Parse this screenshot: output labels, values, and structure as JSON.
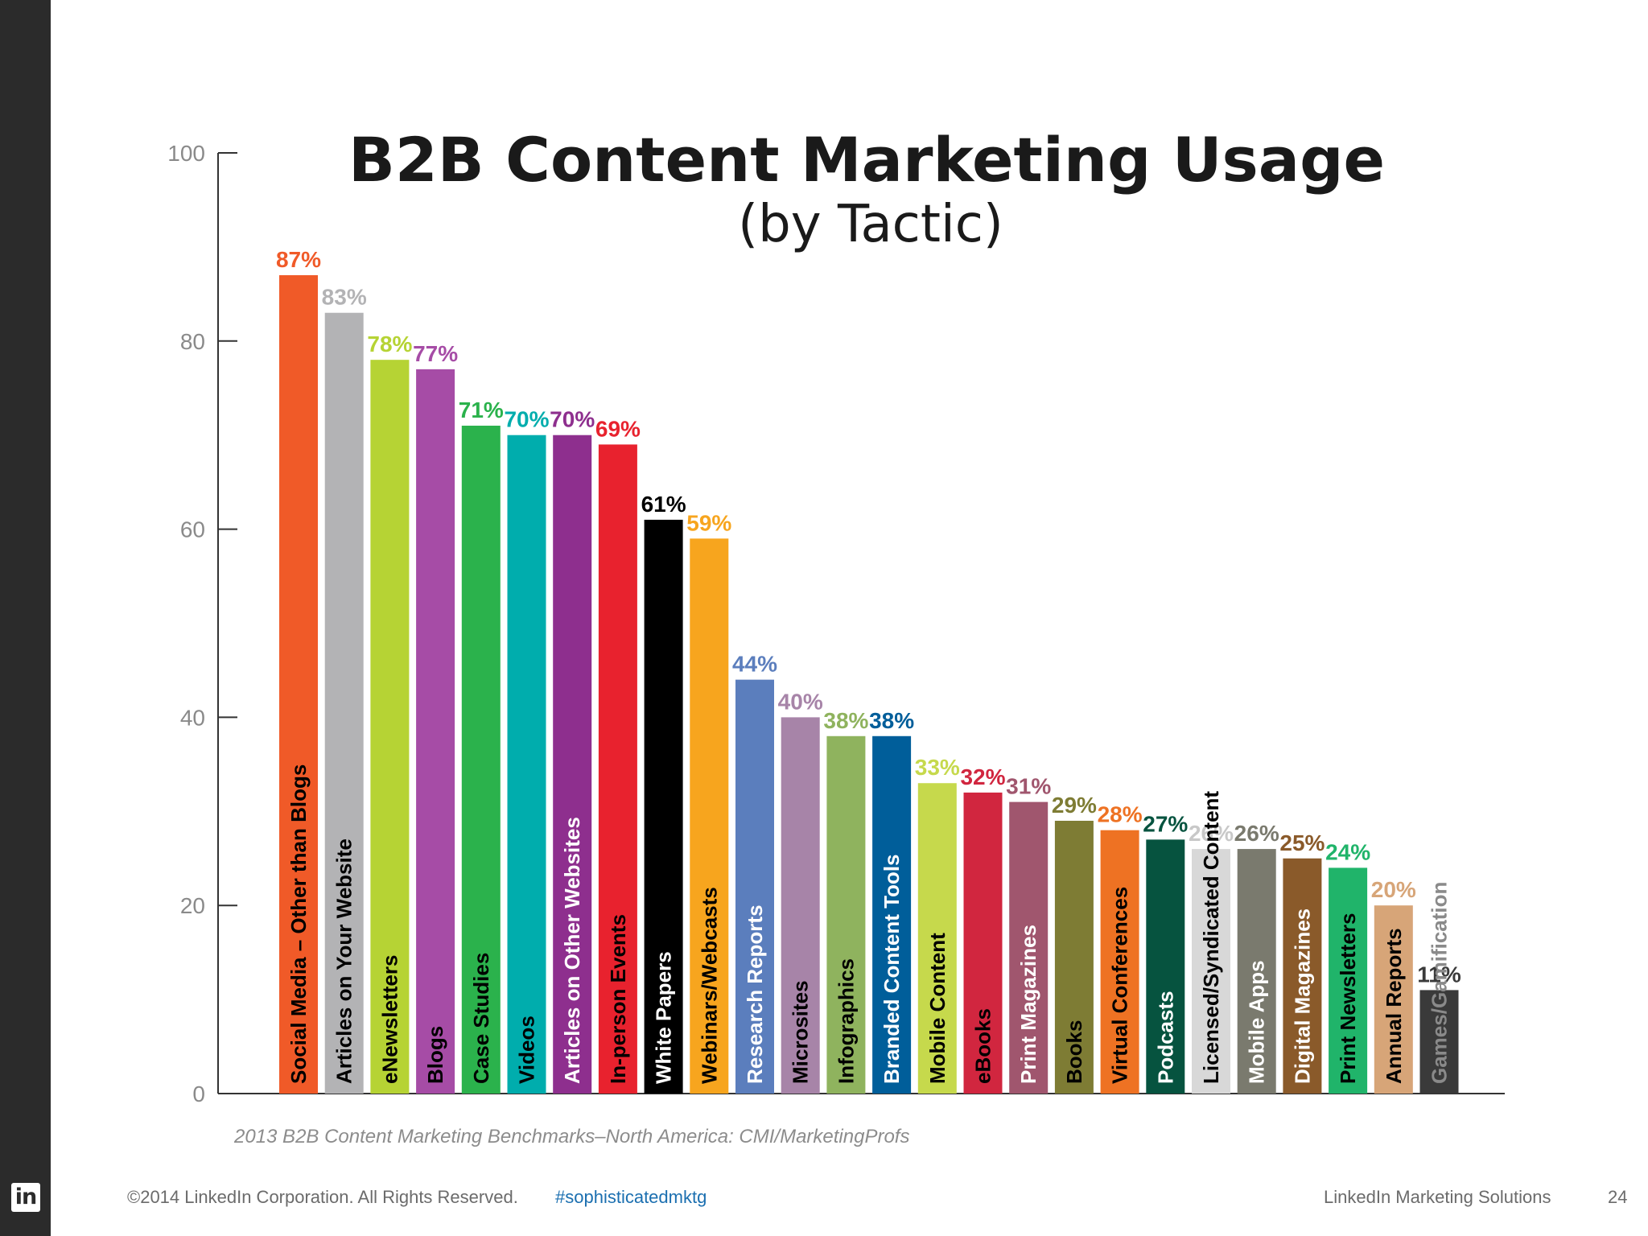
{
  "footer": {
    "copyright": "©2014 LinkedIn Corporation. All Rights Reserved.",
    "hashtag": "#sophisticatedmktg",
    "brand": "LinkedIn Marketing Solutions",
    "page_number": "24",
    "logo_text": "in"
  },
  "chart_data": {
    "type": "bar",
    "title": "B2B Content Marketing Usage",
    "subtitle": "(by Tactic)",
    "source": "2013 B2B Content Marketing Benchmarks–North America: CMI/MarketingProfs",
    "xlabel": "",
    "ylabel": "",
    "ylim": [
      0,
      100
    ],
    "yticks": [
      0,
      20,
      40,
      60,
      80,
      100
    ],
    "grid": false,
    "legend": "none",
    "value_suffix": "%",
    "categories": [
      "Social Media – Other than Blogs",
      "Articles on Your Website",
      "eNewsletters",
      "Blogs",
      "Case Studies",
      "Videos",
      "Articles on Other Websites",
      "In-person Events",
      "White Papers",
      "Webinars/Webcasts",
      "Research Reports",
      "Microsites",
      "Infographics",
      "Branded Content Tools",
      "Mobile Content",
      "eBooks",
      "Print Magazines",
      "Books",
      "Virtual Conferences",
      "Podcasts",
      "Licensed/Syndicated Content",
      "Mobile Apps",
      "Digital Magazines",
      "Print Newsletters",
      "Annual Reports",
      "Games/Gamification"
    ],
    "values": [
      87,
      83,
      78,
      77,
      71,
      70,
      70,
      69,
      61,
      59,
      44,
      40,
      38,
      38,
      33,
      32,
      31,
      29,
      28,
      27,
      26,
      26,
      25,
      24,
      20,
      11
    ],
    "colors": [
      "#f05a28",
      "#b3b3b5",
      "#b6d334",
      "#a64ca6",
      "#2bb24c",
      "#00adad",
      "#8e2f8e",
      "#e8222e",
      "#000000",
      "#f7a51e",
      "#5b7ebd",
      "#a784a8",
      "#8fb35e",
      "#005e9a",
      "#c6d94c",
      "#d1263f",
      "#a0566e",
      "#7e7c34",
      "#ee7223",
      "#06533f",
      "#d8d8d8",
      "#7a7a6e",
      "#8a5a2a",
      "#20b46a",
      "#d7a578",
      "#3a3a3a"
    ],
    "label_text_colors": [
      "#000000",
      "#000000",
      "#000000",
      "#000000",
      "#000000",
      "#000000",
      "#ffffff",
      "#000000",
      "#ffffff",
      "#000000",
      "#ffffff",
      "#000000",
      "#000000",
      "#ffffff",
      "#000000",
      "#000000",
      "#ffffff",
      "#000000",
      "#000000",
      "#ffffff",
      "#000000",
      "#ffffff",
      "#ffffff",
      "#000000",
      "#000000",
      "#8a8a8a"
    ]
  }
}
